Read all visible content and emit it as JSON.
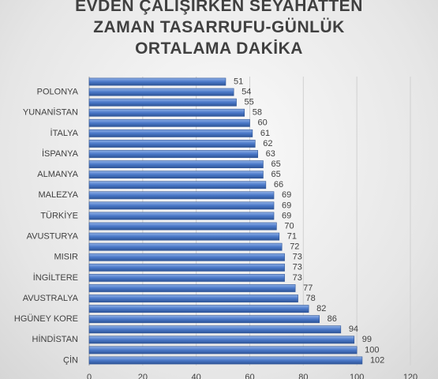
{
  "chart_data": {
    "type": "bar",
    "orientation": "horizontal",
    "title": "EVDEN ÇALIŞIRKEN SEYAHATTEN ZAMAN TASARRUFU-GÜNLÜK ORTALAMA DAKİKA",
    "categories": [
      null,
      "POLONYA",
      null,
      "YUNANİSTAN",
      null,
      "İTALYA",
      null,
      "İSPANYA",
      null,
      "ALMANYA",
      null,
      "MALEZYA",
      null,
      "TÜRKİYE",
      null,
      "AVUSTURYA",
      null,
      "MISIR",
      null,
      "İNGİLTERE",
      null,
      "AVUSTRALYA",
      null,
      "HGÜNEY KORE",
      null,
      "HİNDİSTAN",
      null,
      "ÇİN"
    ],
    "values": [
      51,
      54,
      55,
      58,
      60,
      61,
      62,
      63,
      65,
      65,
      66,
      69,
      69,
      69,
      70,
      71,
      72,
      73,
      73,
      73,
      77,
      78,
      82,
      86,
      94,
      99,
      100,
      102
    ],
    "color": "#4472c4",
    "xlim": [
      0,
      120
    ],
    "xticks": [
      0,
      20,
      40,
      60,
      80,
      100,
      120
    ],
    "grid": true
  }
}
